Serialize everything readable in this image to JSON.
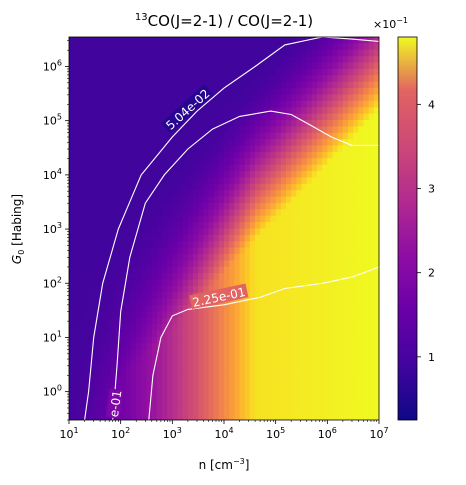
{
  "chart_data": {
    "type": "heatmap",
    "title_iso": "13",
    "title_rest": "CO(J=2-1) / CO(J=2-1)",
    "xlabel_main": "n [cm",
    "xlabel_exp": "−3",
    "xlabel_close": "]",
    "ylabel_sym": "G",
    "ylabel_sub": "0",
    "ylabel_rest": " [Habing]",
    "x_scale": "log",
    "y_scale": "log",
    "xlim": [
      10,
      10000000
    ],
    "ylim": [
      0.3,
      3500000
    ],
    "x_ticks": [
      {
        "value": 10,
        "base": "10",
        "exp": "1"
      },
      {
        "value": 100,
        "base": "10",
        "exp": "2"
      },
      {
        "value": 1000,
        "base": "10",
        "exp": "3"
      },
      {
        "value": 10000,
        "base": "10",
        "exp": "4"
      },
      {
        "value": 100000,
        "base": "10",
        "exp": "5"
      },
      {
        "value": 1000000,
        "base": "10",
        "exp": "6"
      },
      {
        "value": 10000000,
        "base": "10",
        "exp": "7"
      }
    ],
    "y_ticks": [
      {
        "value": 1,
        "base": "10",
        "exp": "0"
      },
      {
        "value": 10,
        "base": "10",
        "exp": "1"
      },
      {
        "value": 100,
        "base": "10",
        "exp": "2"
      },
      {
        "value": 1000,
        "base": "10",
        "exp": "3"
      },
      {
        "value": 10000,
        "base": "10",
        "exp": "4"
      },
      {
        "value": 100000,
        "base": "10",
        "exp": "5"
      },
      {
        "value": 1000000,
        "base": "10",
        "exp": "6"
      }
    ],
    "colormap": "plasma",
    "colorbar": {
      "range": [
        0.25,
        4.8
      ],
      "ticks": [
        1,
        2,
        3,
        4
      ],
      "tick_labels": [
        "1",
        "2",
        "3",
        "4"
      ],
      "multiplier_base": "×10",
      "multiplier_exp": "−1"
    },
    "contours": [
      {
        "level": 0.0504,
        "label": "5.04e-02",
        "points": [
          [
            20,
            0.3
          ],
          [
            24,
            1
          ],
          [
            30,
            10
          ],
          [
            45,
            100
          ],
          [
            90,
            1000
          ],
          [
            250,
            10000
          ],
          [
            1000,
            50000
          ],
          [
            3000,
            150000
          ],
          [
            10000,
            400000
          ],
          [
            40000,
            1000000
          ],
          [
            150000,
            2500000
          ],
          [
            800000,
            3500000
          ],
          [
            3000000,
            3200000
          ],
          [
            10000000,
            2900000
          ]
        ]
      },
      {
        "level": 0.225,
        "label": "e-01",
        "points": [
          [
            70,
            0.3
          ],
          [
            85,
            3
          ],
          [
            100,
            30
          ],
          [
            150,
            300
          ],
          [
            300,
            3000
          ],
          [
            700,
            10000
          ],
          [
            2000,
            30000
          ],
          [
            6000,
            70000
          ],
          [
            20000,
            120000
          ],
          [
            80000,
            150000
          ],
          [
            200000,
            130000
          ],
          [
            500000,
            80000
          ],
          [
            1200000,
            50000
          ],
          [
            3000000,
            35000
          ],
          [
            10000000,
            35000
          ]
        ]
      },
      {
        "level": 0.225,
        "label": "2.25e-01",
        "points": [
          [
            350,
            0.3
          ],
          [
            420,
            2
          ],
          [
            600,
            10
          ],
          [
            1000,
            25
          ],
          [
            2000,
            33
          ],
          [
            10000,
            40
          ],
          [
            50000,
            55
          ],
          [
            150000,
            80
          ],
          [
            800000,
            100
          ],
          [
            3000000,
            130
          ],
          [
            10000000,
            200
          ]
        ]
      }
    ]
  }
}
